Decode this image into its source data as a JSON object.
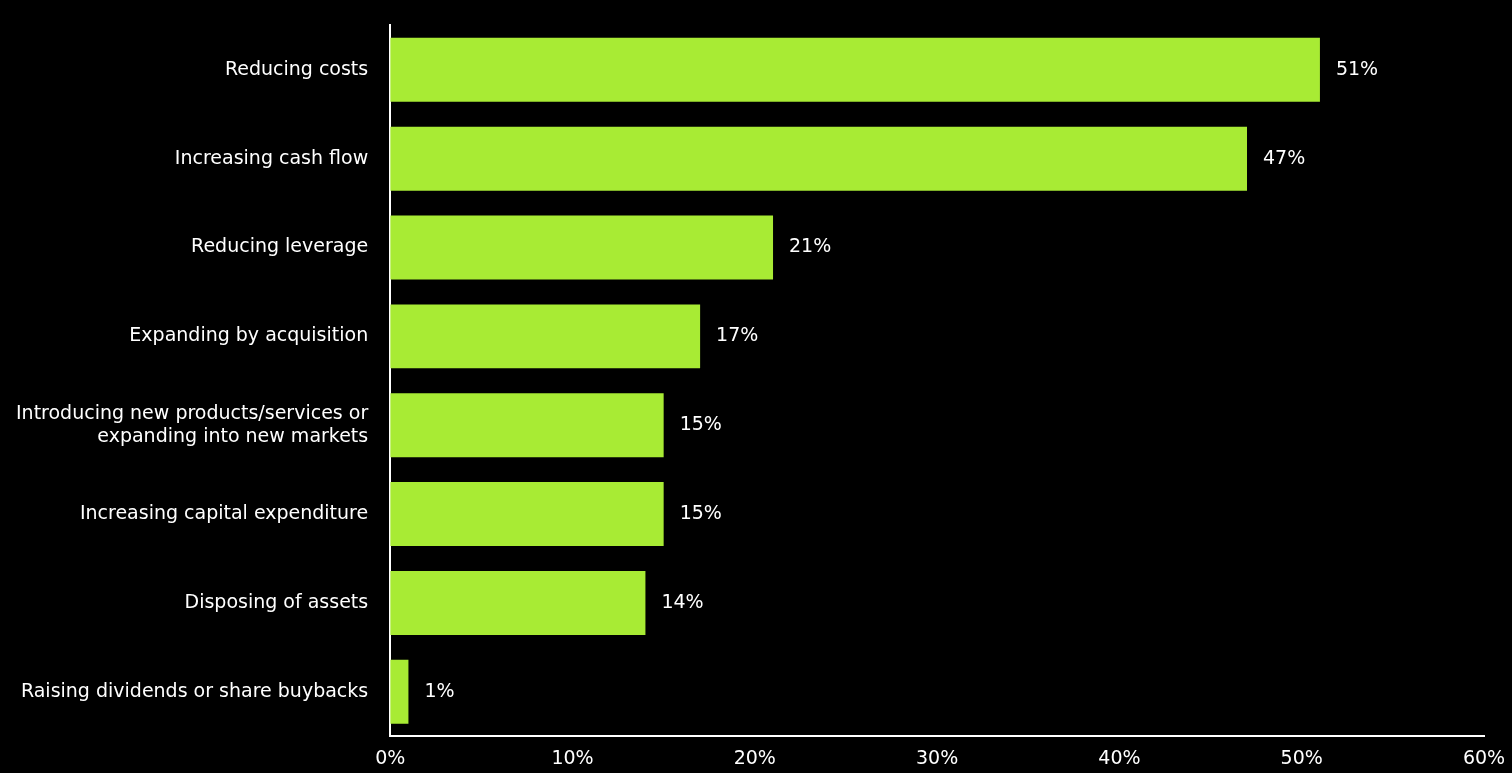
{
  "chart_data": {
    "type": "bar",
    "orientation": "horizontal",
    "categories": [
      "Reducing costs",
      "Increasing cash flow",
      "Reducing leverage",
      "Expanding by acquisition",
      "Introducing new products/services or expanding into new markets",
      "Increasing capital expenditure",
      "Disposing of assets",
      "Raising dividends or share buybacks"
    ],
    "values": [
      51,
      47,
      21,
      17,
      15,
      15,
      14,
      1
    ],
    "value_labels": [
      "51%",
      "47%",
      "21%",
      "17%",
      "15%",
      "15%",
      "14%",
      "1%"
    ],
    "color": "#a8eb34",
    "xlim": [
      0,
      60
    ],
    "xticks": [
      {
        "value": 0,
        "label": "0%"
      },
      {
        "value": 10,
        "label": "10%"
      },
      {
        "value": 20,
        "label": "20%"
      },
      {
        "value": 30,
        "label": "30%"
      },
      {
        "value": 40,
        "label": "40%"
      },
      {
        "value": 50,
        "label": "50%"
      },
      {
        "value": 60,
        "label": "60%"
      }
    ],
    "grid": false,
    "legend": false
  }
}
